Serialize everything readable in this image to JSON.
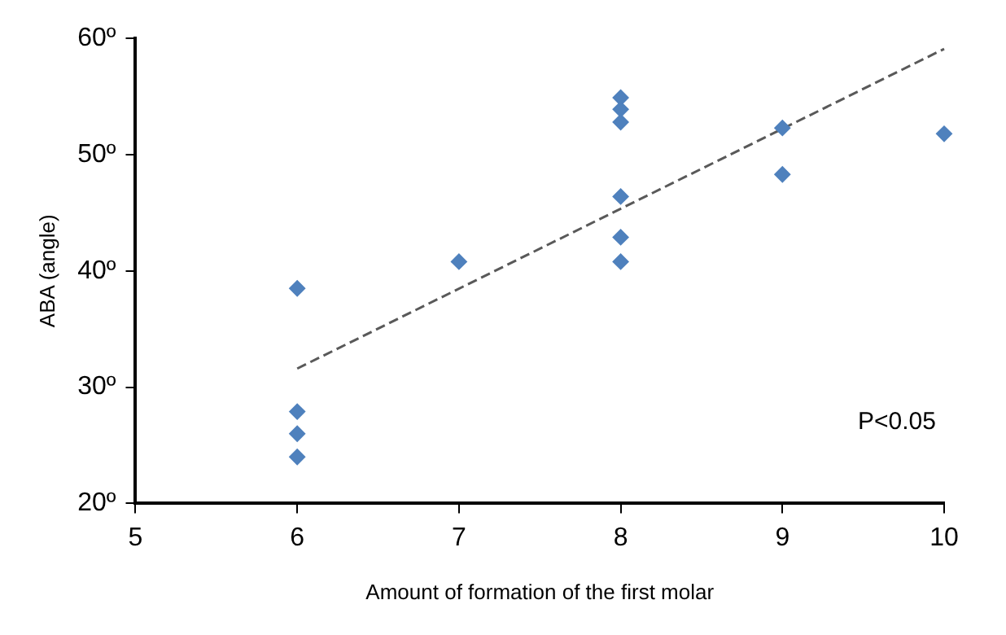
{
  "chart_data": {
    "type": "scatter",
    "xlabel": "Amount of formation of the first molar",
    "ylabel": "ABA (angle)",
    "annotations": [
      "P<0.05"
    ],
    "xlim": [
      5,
      10
    ],
    "xticks": [
      5,
      6,
      7,
      8,
      9,
      10
    ],
    "ylim": [
      20,
      60
    ],
    "yticks": [
      {
        "value": 20,
        "label": "20º"
      },
      {
        "value": 30,
        "label": "30º"
      },
      {
        "value": 40,
        "label": "40º"
      },
      {
        "value": 50,
        "label": "50º"
      },
      {
        "value": 60,
        "label": "60º"
      }
    ],
    "grid": false,
    "legend": false,
    "marker": "diamond",
    "series": [
      {
        "type": "scatter",
        "color": "#4f81bd",
        "x": [
          6,
          6,
          6,
          6,
          7,
          8,
          8,
          8,
          8,
          8,
          8,
          9,
          9,
          10
        ],
        "values": [
          38.5,
          27.9,
          26.0,
          24.0,
          40.8,
          54.9,
          53.9,
          52.8,
          46.4,
          42.9,
          40.8,
          52.3,
          48.3,
          51.8
        ]
      },
      {
        "type": "line",
        "color": "#595959",
        "line_style": "dashed",
        "marker": "none",
        "x": [
          6,
          10
        ],
        "values": [
          31.6,
          59.1
        ]
      }
    ]
  }
}
